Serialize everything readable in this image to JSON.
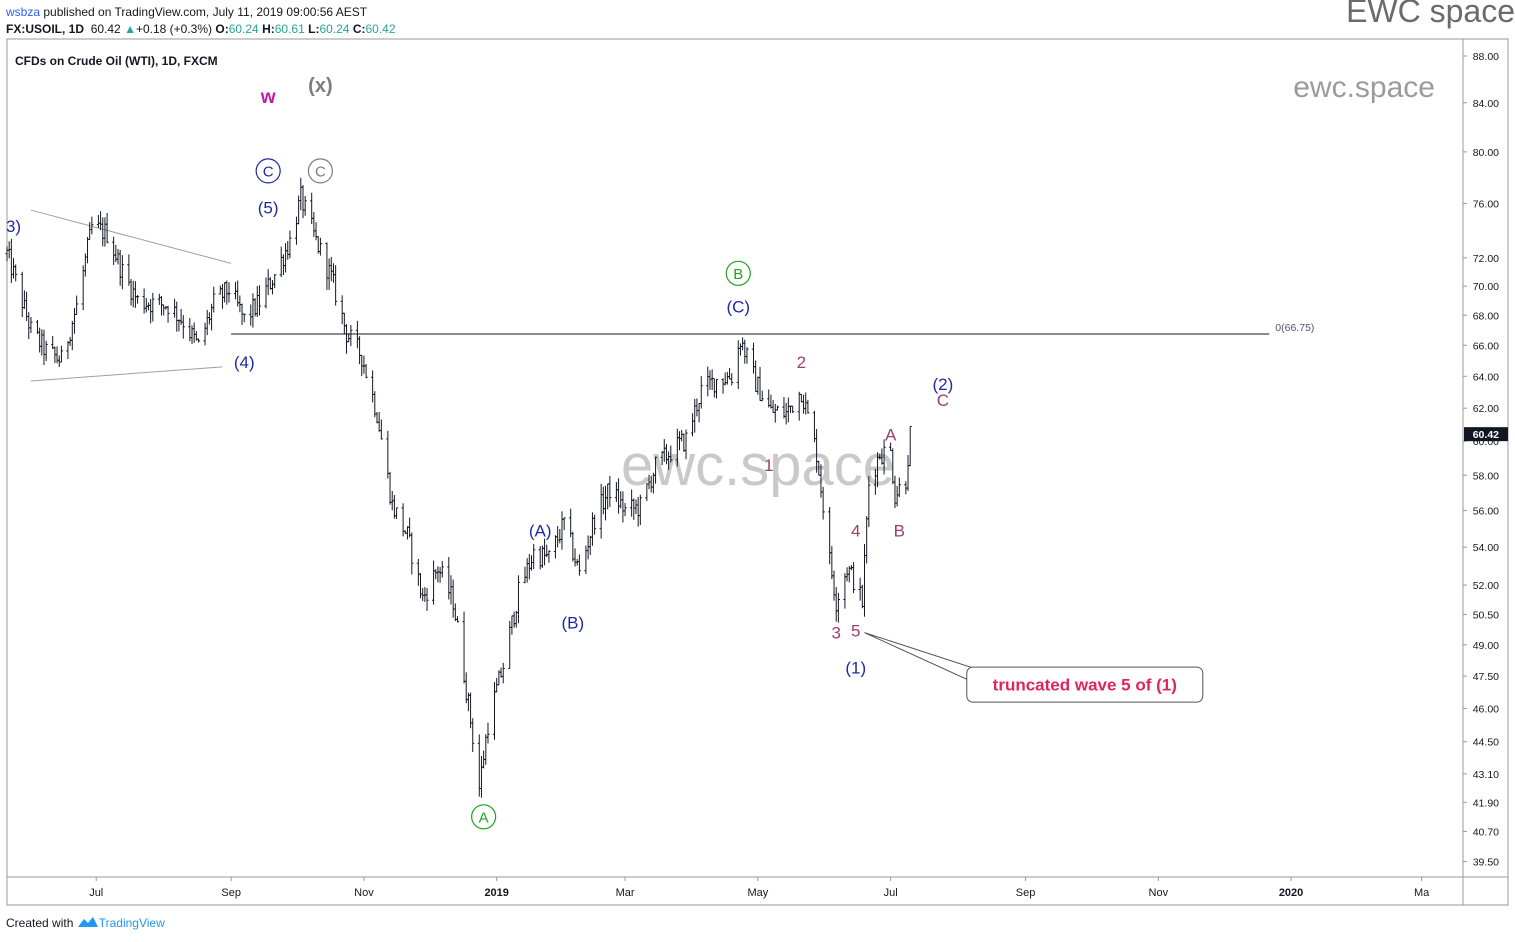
{
  "header": {
    "publisher": "wsbza",
    "published_text": " published on TradingView.com, July 11, 2019 09:00:56 AEST",
    "brand": "EWC space"
  },
  "quote": {
    "symbol_tf": "FX:USOIL, 1D",
    "last": "60.42",
    "arrow": "▲",
    "change": "+0.18 (+0.3%)",
    "o_label": "O:",
    "o": "60.24",
    "h_label": "H:",
    "h": "60.61",
    "l_label": "L:",
    "l": "60.24",
    "c_label": "C:",
    "c": "60.42"
  },
  "footer": {
    "created_with": "Created with",
    "tradingview": "TradingView"
  },
  "chart_data": {
    "type": "ohlc",
    "title": "CFDs on Crude Oil (WTI), 1D, FXCM",
    "watermark_center": "ewc.space",
    "watermark_corner": "ewc.space",
    "y_scale": "log",
    "ylim": [
      38.9,
      89.5
    ],
    "price_ticks": [
      "88.00",
      "84.00",
      "80.00",
      "76.00",
      "72.00",
      "70.00",
      "68.00",
      "66.00",
      "64.00",
      "62.00",
      "60.00",
      "58.00",
      "56.00",
      "54.00",
      "52.00",
      "50.50",
      "49.00",
      "47.50",
      "46.00",
      "44.50",
      "43.10",
      "41.90",
      "40.70",
      "39.50"
    ],
    "last_price_label": "60.42",
    "time_axis": [
      {
        "label": "Jul",
        "date": "2018-07-01"
      },
      {
        "label": "Sep",
        "date": "2018-09-01"
      },
      {
        "label": "Nov",
        "date": "2018-11-01"
      },
      {
        "label": "2019",
        "date": "2019-01-01"
      },
      {
        "label": "Mar",
        "date": "2019-03-01"
      },
      {
        "label": "May",
        "date": "2019-05-01"
      },
      {
        "label": "Jul",
        "date": "2019-07-01"
      },
      {
        "label": "Sep",
        "date": "2019-09-01"
      },
      {
        "label": "Nov",
        "date": "2019-11-01"
      },
      {
        "label": "2020",
        "date": "2020-01-01"
      },
      {
        "label": "Ma",
        "date": "2020-03-01"
      }
    ],
    "price_path": [
      [
        "2018-05-21",
        72.3
      ],
      [
        "2018-06-01",
        67.0
      ],
      [
        "2018-06-08",
        65.6
      ],
      [
        "2018-06-15",
        65.0
      ],
      [
        "2018-06-22",
        68.6
      ],
      [
        "2018-06-29",
        74.2
      ],
      [
        "2018-07-06",
        73.8
      ],
      [
        "2018-07-13",
        71.0
      ],
      [
        "2018-07-20",
        69.0
      ],
      [
        "2018-07-27",
        68.8
      ],
      [
        "2018-08-03",
        68.7
      ],
      [
        "2018-08-10",
        67.6
      ],
      [
        "2018-08-17",
        65.9
      ],
      [
        "2018-08-24",
        68.8
      ],
      [
        "2018-08-31",
        69.8
      ],
      [
        "2018-09-07",
        67.7
      ],
      [
        "2018-09-14",
        68.9
      ],
      [
        "2018-09-21",
        70.8
      ],
      [
        "2018-09-28",
        73.2
      ],
      [
        "2018-10-03",
        76.4
      ],
      [
        "2018-10-10",
        73.2
      ],
      [
        "2018-10-17",
        70.6
      ],
      [
        "2018-10-24",
        66.8
      ],
      [
        "2018-10-31",
        65.3
      ],
      [
        "2018-11-07",
        61.7
      ],
      [
        "2018-11-14",
        56.3
      ],
      [
        "2018-11-21",
        54.6
      ],
      [
        "2018-11-28",
        51.3
      ],
      [
        "2018-12-05",
        52.9
      ],
      [
        "2018-12-12",
        51.2
      ],
      [
        "2018-12-19",
        46.2
      ],
      [
        "2018-12-24",
        42.5
      ],
      [
        "2018-12-28",
        45.3
      ],
      [
        "2019-01-04",
        48.0
      ],
      [
        "2019-01-11",
        51.6
      ],
      [
        "2019-01-18",
        53.7
      ],
      [
        "2019-01-25",
        53.4
      ],
      [
        "2019-02-01",
        55.3
      ],
      [
        "2019-02-08",
        52.6
      ],
      [
        "2019-02-15",
        55.6
      ],
      [
        "2019-02-22",
        57.2
      ],
      [
        "2019-03-01",
        56.0
      ],
      [
        "2019-03-08",
        56.2
      ],
      [
        "2019-03-15",
        58.5
      ],
      [
        "2019-03-22",
        59.4
      ],
      [
        "2019-03-29",
        60.1
      ],
      [
        "2019-04-05",
        63.1
      ],
      [
        "2019-04-12",
        63.8
      ],
      [
        "2019-04-19",
        64.0
      ],
      [
        "2019-04-23",
        66.4
      ],
      [
        "2019-04-30",
        63.6
      ],
      [
        "2019-05-07",
        61.8
      ],
      [
        "2019-05-14",
        61.7
      ],
      [
        "2019-05-21",
        63.1
      ],
      [
        "2019-05-28",
        59.3
      ],
      [
        "2019-06-03",
        53.3
      ],
      [
        "2019-06-06",
        51.2
      ],
      [
        "2019-06-11",
        52.9
      ],
      [
        "2019-06-14",
        52.3
      ],
      [
        "2019-06-18",
        51.1
      ],
      [
        "2019-06-21",
        57.5
      ],
      [
        "2019-06-26",
        59.3
      ],
      [
        "2019-07-01",
        59.3
      ],
      [
        "2019-07-03",
        56.9
      ],
      [
        "2019-07-08",
        57.8
      ],
      [
        "2019-07-10",
        60.42
      ]
    ],
    "horizontal_level": {
      "price": 66.75,
      "label": "0(66.75)",
      "from": "2018-09-01",
      "to": "2019-12-22"
    },
    "trendlines": [
      {
        "from": [
          "2018-06-01",
          75.5
        ],
        "to": [
          "2018-09-01",
          71.6
        ]
      },
      {
        "from": [
          "2018-06-01",
          63.7
        ],
        "to": [
          "2018-08-28",
          64.6
        ]
      }
    ],
    "annotations": [
      {
        "text": "w",
        "date": "2018-09-18",
        "price": 84.5,
        "color": "#c41aa8",
        "size": 19,
        "bold": true
      },
      {
        "text": "(x)",
        "date": "2018-10-12",
        "price": 85.4,
        "color": "#7d7d7d",
        "size": 20,
        "bold": true
      },
      {
        "text": "C",
        "date": "2018-09-18",
        "price": 78.5,
        "color": "#1e2aa6",
        "size": 15,
        "circle": true
      },
      {
        "text": "C",
        "date": "2018-10-12",
        "price": 78.5,
        "color": "#7d7d7d",
        "size": 15,
        "circle": true
      },
      {
        "text": "(5)",
        "date": "2018-09-18",
        "price": 75.7,
        "color": "#1e2aa6",
        "size": 17
      },
      {
        "text": "3)",
        "date": "2018-05-24",
        "price": 74.3,
        "color": "#1e2aa6",
        "size": 17
      },
      {
        "text": "(4)",
        "date": "2018-09-07",
        "price": 64.9,
        "color": "#1e2aa6",
        "size": 17
      },
      {
        "text": "B",
        "date": "2019-04-22",
        "price": 70.9,
        "color": "#1ea51e",
        "size": 15,
        "circle": true
      },
      {
        "text": "(C)",
        "date": "2019-04-22",
        "price": 68.6,
        "color": "#1e2aa6",
        "size": 17
      },
      {
        "text": "2",
        "date": "2019-05-21",
        "price": 64.9,
        "color": "#9c3e70",
        "size": 17
      },
      {
        "text": "1",
        "date": "2019-05-06",
        "price": 58.6,
        "color": "#9c3e70",
        "size": 17
      },
      {
        "text": "(A)",
        "date": "2019-01-21",
        "price": 54.9,
        "color": "#1e2aa6",
        "size": 17
      },
      {
        "text": "(B)",
        "date": "2019-02-05",
        "price": 50.1,
        "color": "#1e2aa6",
        "size": 17
      },
      {
        "text": "A",
        "date": "2018-12-26",
        "price": 41.3,
        "color": "#1ea51e",
        "size": 15,
        "circle": true
      },
      {
        "text": "(2)",
        "date": "2019-07-25",
        "price": 63.5,
        "color": "#1e2aa6",
        "size": 17
      },
      {
        "text": "C",
        "date": "2019-07-25",
        "price": 62.5,
        "color": "#9c3e70",
        "size": 17
      },
      {
        "text": "A",
        "date": "2019-07-01",
        "price": 60.4,
        "color": "#9c3e70",
        "size": 17
      },
      {
        "text": "B",
        "date": "2019-07-05",
        "price": 54.9,
        "color": "#9c3e70",
        "size": 17
      },
      {
        "text": "4",
        "date": "2019-06-15",
        "price": 54.9,
        "color": "#9c3e70",
        "size": 17
      },
      {
        "text": "3",
        "date": "2019-06-06",
        "price": 49.6,
        "color": "#9c3e70",
        "size": 17
      },
      {
        "text": "5",
        "date": "2019-06-15",
        "price": 49.7,
        "color": "#9c3e70",
        "size": 17
      },
      {
        "text": "(1)",
        "date": "2019-06-15",
        "price": 47.9,
        "color": "#1e2aa6",
        "size": 17
      }
    ],
    "callout": {
      "text": "truncated wave 5 of (1)",
      "color": "#e0245e",
      "anchor": [
        "2019-06-19",
        49.6
      ],
      "box": [
        "2019-08-05",
        47.1
      ]
    }
  }
}
